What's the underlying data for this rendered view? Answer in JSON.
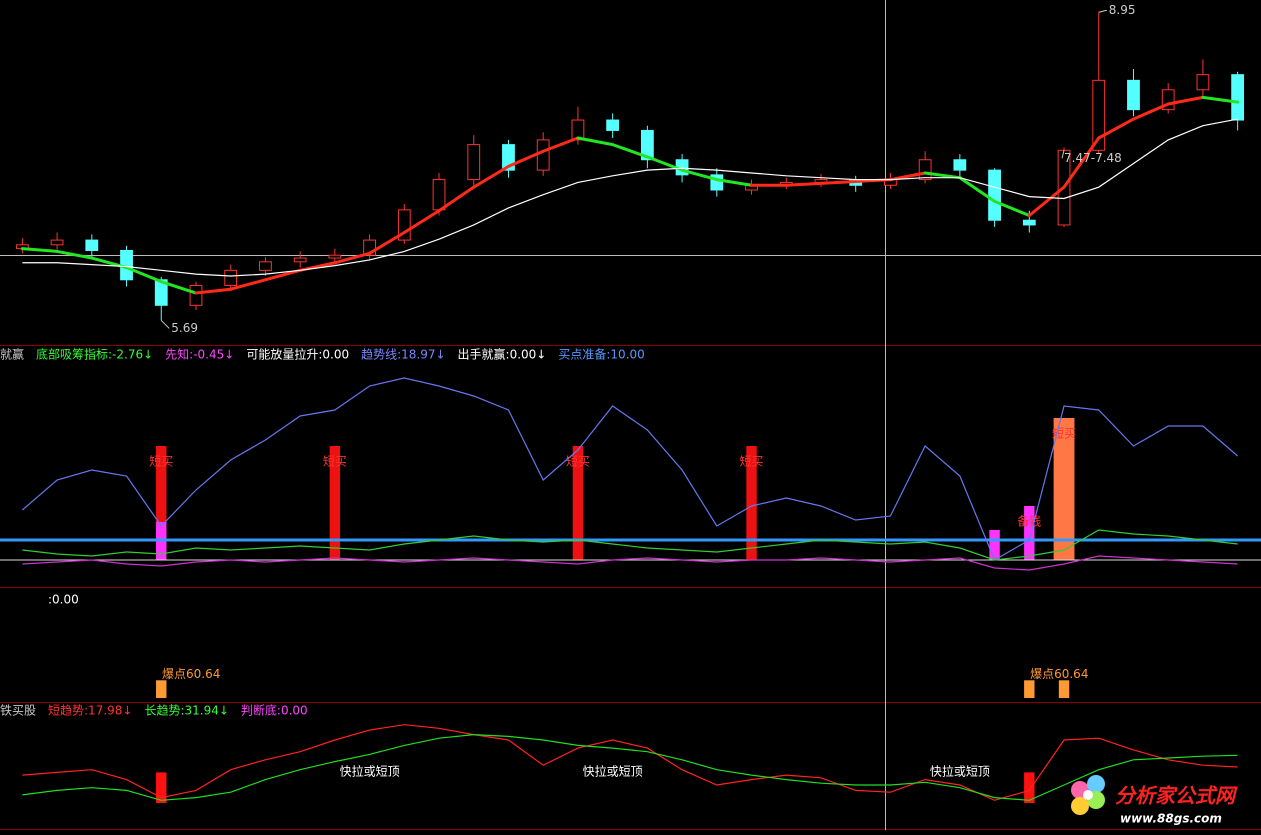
{
  "chart_data": [
    {
      "type": "candlestick",
      "open": [
        6.45,
        6.49,
        6.54,
        6.43,
        6.12,
        5.85,
        6.06,
        6.22,
        6.31,
        6.35,
        6.38,
        6.54,
        6.86,
        7.18,
        7.55,
        7.28,
        7.6,
        7.81,
        7.7,
        7.39,
        7.23,
        7.07,
        7.12,
        7.15,
        7.18,
        7.12,
        7.18,
        7.39,
        7.28,
        6.75,
        6.7,
        7.49,
        8.23,
        7.92,
        8.13,
        8.29
      ],
      "high": [
        6.56,
        6.62,
        6.6,
        6.48,
        6.15,
        6.1,
        6.28,
        6.36,
        6.42,
        6.45,
        6.6,
        6.92,
        7.25,
        7.65,
        7.6,
        7.68,
        7.95,
        7.88,
        7.75,
        7.45,
        7.3,
        7.18,
        7.2,
        7.24,
        7.22,
        7.25,
        7.48,
        7.45,
        7.3,
        6.85,
        7.52,
        8.95,
        8.35,
        8.2,
        8.45,
        8.32
      ],
      "low": [
        6.4,
        6.44,
        6.36,
        6.05,
        5.69,
        5.8,
        6.0,
        6.16,
        6.25,
        6.28,
        6.33,
        6.5,
        6.8,
        7.12,
        7.2,
        7.22,
        7.55,
        7.62,
        7.3,
        7.15,
        7.0,
        7.02,
        7.08,
        7.1,
        7.05,
        7.08,
        7.14,
        7.2,
        6.68,
        6.62,
        6.68,
        7.45,
        7.85,
        7.88,
        8.05,
        7.7
      ],
      "close": [
        6.49,
        6.54,
        6.43,
        6.12,
        5.85,
        6.06,
        6.22,
        6.31,
        6.35,
        6.38,
        6.54,
        6.86,
        7.18,
        7.55,
        7.28,
        7.6,
        7.81,
        7.7,
        7.39,
        7.23,
        7.07,
        7.12,
        7.15,
        7.18,
        7.12,
        7.18,
        7.39,
        7.28,
        6.75,
        6.7,
        7.49,
        8.23,
        7.92,
        8.13,
        8.29,
        7.81
      ],
      "up_color": "#ff3232",
      "down_color": "#54ffff",
      "ylim": [
        5.43,
        9.08
      ],
      "series": [
        {
          "values": [
            6.45,
            6.42,
            6.35,
            6.25,
            6.1,
            5.98,
            6.02,
            6.12,
            6.22,
            6.3,
            6.4,
            6.62,
            6.85,
            7.1,
            7.32,
            7.48,
            7.62,
            7.55,
            7.42,
            7.28,
            7.18,
            7.12,
            7.12,
            7.14,
            7.16,
            7.18,
            7.25,
            7.2,
            6.95,
            6.8,
            7.1,
            7.62,
            7.82,
            7.98,
            8.05,
            8.0
          ],
          "rise_color": "#ff2a1a",
          "fall_color": "#22e622"
        },
        {
          "values": [
            6.3,
            6.3,
            6.28,
            6.26,
            6.22,
            6.18,
            6.16,
            6.18,
            6.22,
            6.27,
            6.33,
            6.42,
            6.55,
            6.7,
            6.88,
            7.02,
            7.15,
            7.22,
            7.28,
            7.3,
            7.28,
            7.25,
            7.22,
            7.2,
            7.18,
            7.18,
            7.2,
            7.2,
            7.1,
            7.0,
            6.98,
            7.1,
            7.35,
            7.6,
            7.75,
            7.82
          ],
          "color": "#ffffff"
        }
      ],
      "annotations": [
        "8.95",
        "5.69",
        "7.47-7.48"
      ]
    },
    {
      "type": "line",
      "header": [
        {
          "text": "就赢",
          "color": "#c8c8c8"
        },
        {
          "text": "底部吸筹指标:-2.76↓",
          "color": "#33ff33"
        },
        {
          "text": "先知:-0.45↓",
          "color": "#ff44ff"
        },
        {
          "text": "可能放量拉升:0.00",
          "color": "#ffffff"
        },
        {
          "text": "趋势线:18.97↓",
          "color": "#7788ff"
        },
        {
          "text": "出手就赢:0.00↓",
          "color": "#ffffff"
        },
        {
          "text": "买点准备:10.00",
          "color": "#5599ff"
        }
      ],
      "ylim": [
        -14,
        100
      ],
      "hlines": [
        {
          "value": 10,
          "color": "#3399ff"
        },
        {
          "value": 0,
          "color": "#dddddd"
        }
      ],
      "bars": [
        {
          "color": "#ee1111",
          "values": [
            null,
            null,
            null,
            null,
            57,
            null,
            null,
            null,
            null,
            57,
            null,
            null,
            null,
            null,
            null,
            null,
            57,
            null,
            null,
            null,
            null,
            57,
            null,
            null,
            null,
            null,
            null,
            null,
            null,
            null,
            null,
            null,
            null,
            null,
            null,
            null
          ],
          "notes": [
            null,
            null,
            null,
            null,
            "短买",
            null,
            null,
            null,
            null,
            "短买",
            null,
            null,
            null,
            null,
            null,
            null,
            "短买",
            null,
            null,
            null,
            null,
            "短买",
            null,
            null,
            null,
            null,
            null,
            null,
            null,
            null,
            null,
            null,
            null,
            null,
            null,
            null
          ]
        },
        {
          "color": "#ff33ff",
          "values": [
            null,
            null,
            null,
            null,
            19,
            null,
            null,
            null,
            null,
            null,
            null,
            null,
            null,
            null,
            null,
            null,
            null,
            null,
            null,
            null,
            null,
            null,
            null,
            null,
            null,
            null,
            null,
            null,
            15,
            27,
            null,
            null,
            null,
            null,
            null,
            null
          ],
          "notes": [
            null,
            null,
            null,
            null,
            null,
            null,
            null,
            null,
            null,
            null,
            null,
            null,
            null,
            null,
            null,
            null,
            null,
            null,
            null,
            null,
            null,
            null,
            null,
            null,
            null,
            null,
            null,
            null,
            null,
            "备钱",
            null,
            null,
            null,
            null,
            null,
            null
          ]
        },
        {
          "color": "#ff7744",
          "values": [
            null,
            null,
            null,
            null,
            null,
            null,
            null,
            null,
            null,
            null,
            null,
            null,
            null,
            null,
            null,
            null,
            null,
            null,
            null,
            null,
            null,
            null,
            null,
            null,
            null,
            null,
            null,
            null,
            null,
            null,
            71,
            null,
            null,
            null,
            null,
            null
          ],
          "notes": [
            null,
            null,
            null,
            null,
            null,
            null,
            null,
            null,
            null,
            null,
            null,
            null,
            null,
            null,
            null,
            null,
            null,
            null,
            null,
            null,
            null,
            null,
            null,
            null,
            null,
            null,
            null,
            null,
            null,
            null,
            "短买",
            null,
            null,
            null,
            null,
            null
          ]
        }
      ],
      "series": [
        {
          "color": "#6677ee",
          "values": [
            25,
            40,
            45,
            42,
            17,
            35,
            50,
            60,
            72,
            75,
            87,
            91,
            87,
            82,
            75,
            40,
            55,
            77,
            65,
            45,
            17,
            27,
            31,
            27,
            20,
            22,
            57,
            42,
            0,
            10,
            77,
            75,
            57,
            67,
            67,
            52
          ]
        },
        {
          "color": "#33cc33",
          "values": [
            5,
            3,
            2,
            4,
            3,
            6,
            5,
            6,
            7,
            6,
            5,
            8,
            10,
            12,
            10,
            9,
            10,
            8,
            6,
            5,
            4,
            6,
            8,
            10,
            9,
            8,
            9,
            6,
            0,
            2,
            5,
            15,
            13,
            12,
            10,
            8
          ]
        },
        {
          "color": "#cc33cc",
          "values": [
            -2,
            -1,
            0,
            -2,
            -3,
            -1,
            0,
            -1,
            0,
            1,
            0,
            -1,
            0,
            1,
            0,
            -1,
            -2,
            0,
            1,
            0,
            -1,
            0,
            0,
            1,
            0,
            -1,
            0,
            1,
            -4,
            -5,
            -2,
            2,
            1,
            0,
            -1,
            -2
          ]
        }
      ]
    },
    {
      "type": "line",
      "header": [
        {
          "text": ":0.00",
          "color": "#ffffff"
        }
      ],
      "ylim": [
        0,
        370
      ],
      "bars": [
        {
          "color": "#ff9933",
          "values": [
            null,
            null,
            null,
            null,
            60.64,
            null,
            null,
            null,
            null,
            null,
            null,
            null,
            null,
            null,
            null,
            null,
            null,
            null,
            null,
            null,
            null,
            null,
            null,
            null,
            null,
            null,
            null,
            null,
            null,
            60.64,
            60.64,
            null,
            null,
            null,
            null,
            null
          ],
          "value_labels": [
            null,
            null,
            null,
            null,
            "爆点60.64",
            null,
            null,
            null,
            null,
            null,
            null,
            null,
            null,
            null,
            null,
            null,
            null,
            null,
            null,
            null,
            null,
            null,
            null,
            null,
            null,
            null,
            null,
            null,
            null,
            "爆点60.64",
            null,
            null,
            null,
            null,
            null,
            null
          ]
        }
      ]
    },
    {
      "type": "line",
      "header": [
        {
          "text": "铁买股",
          "color": "#c8c8c8"
        },
        {
          "text": "短趋势:17.98↓",
          "color": "#ff3333"
        },
        {
          "text": "长趋势:31.94↓",
          "color": "#33ff33"
        },
        {
          "text": "判断底:0.00",
          "color": "#ff44ff"
        }
      ],
      "ylim": [
        0,
        100
      ],
      "bars": [
        {
          "color": "#ff1111",
          "values": [
            null,
            null,
            null,
            null,
            34,
            null,
            null,
            null,
            null,
            null,
            null,
            null,
            null,
            null,
            null,
            null,
            null,
            null,
            null,
            null,
            null,
            null,
            null,
            null,
            null,
            null,
            null,
            null,
            null,
            34,
            null,
            null,
            null,
            null,
            null,
            null
          ]
        }
      ],
      "series": [
        {
          "color": "#ff2222",
          "values": [
            31,
            34,
            37,
            26,
            6,
            14,
            37,
            48,
            57,
            70,
            81,
            87,
            83,
            76,
            70,
            42,
            61,
            70,
            61,
            37,
            20,
            26,
            31,
            28,
            14,
            12,
            26,
            20,
            3,
            14,
            70,
            72,
            59,
            48,
            42,
            40
          ]
        },
        {
          "color": "#22dd22",
          "values": [
            9,
            14,
            17,
            14,
            3,
            6,
            12,
            26,
            37,
            46,
            54,
            64,
            72,
            76,
            74,
            70,
            64,
            61,
            57,
            48,
            37,
            31,
            26,
            22,
            20,
            20,
            23,
            17,
            6,
            3,
            20,
            37,
            48,
            50,
            52,
            53
          ]
        }
      ],
      "annotations": [
        "快拉或短顶",
        "快拉或短顶",
        "快拉或短顶"
      ]
    }
  ],
  "watermark": {
    "title": "分析家公式网",
    "url": "www.88gs.com"
  }
}
